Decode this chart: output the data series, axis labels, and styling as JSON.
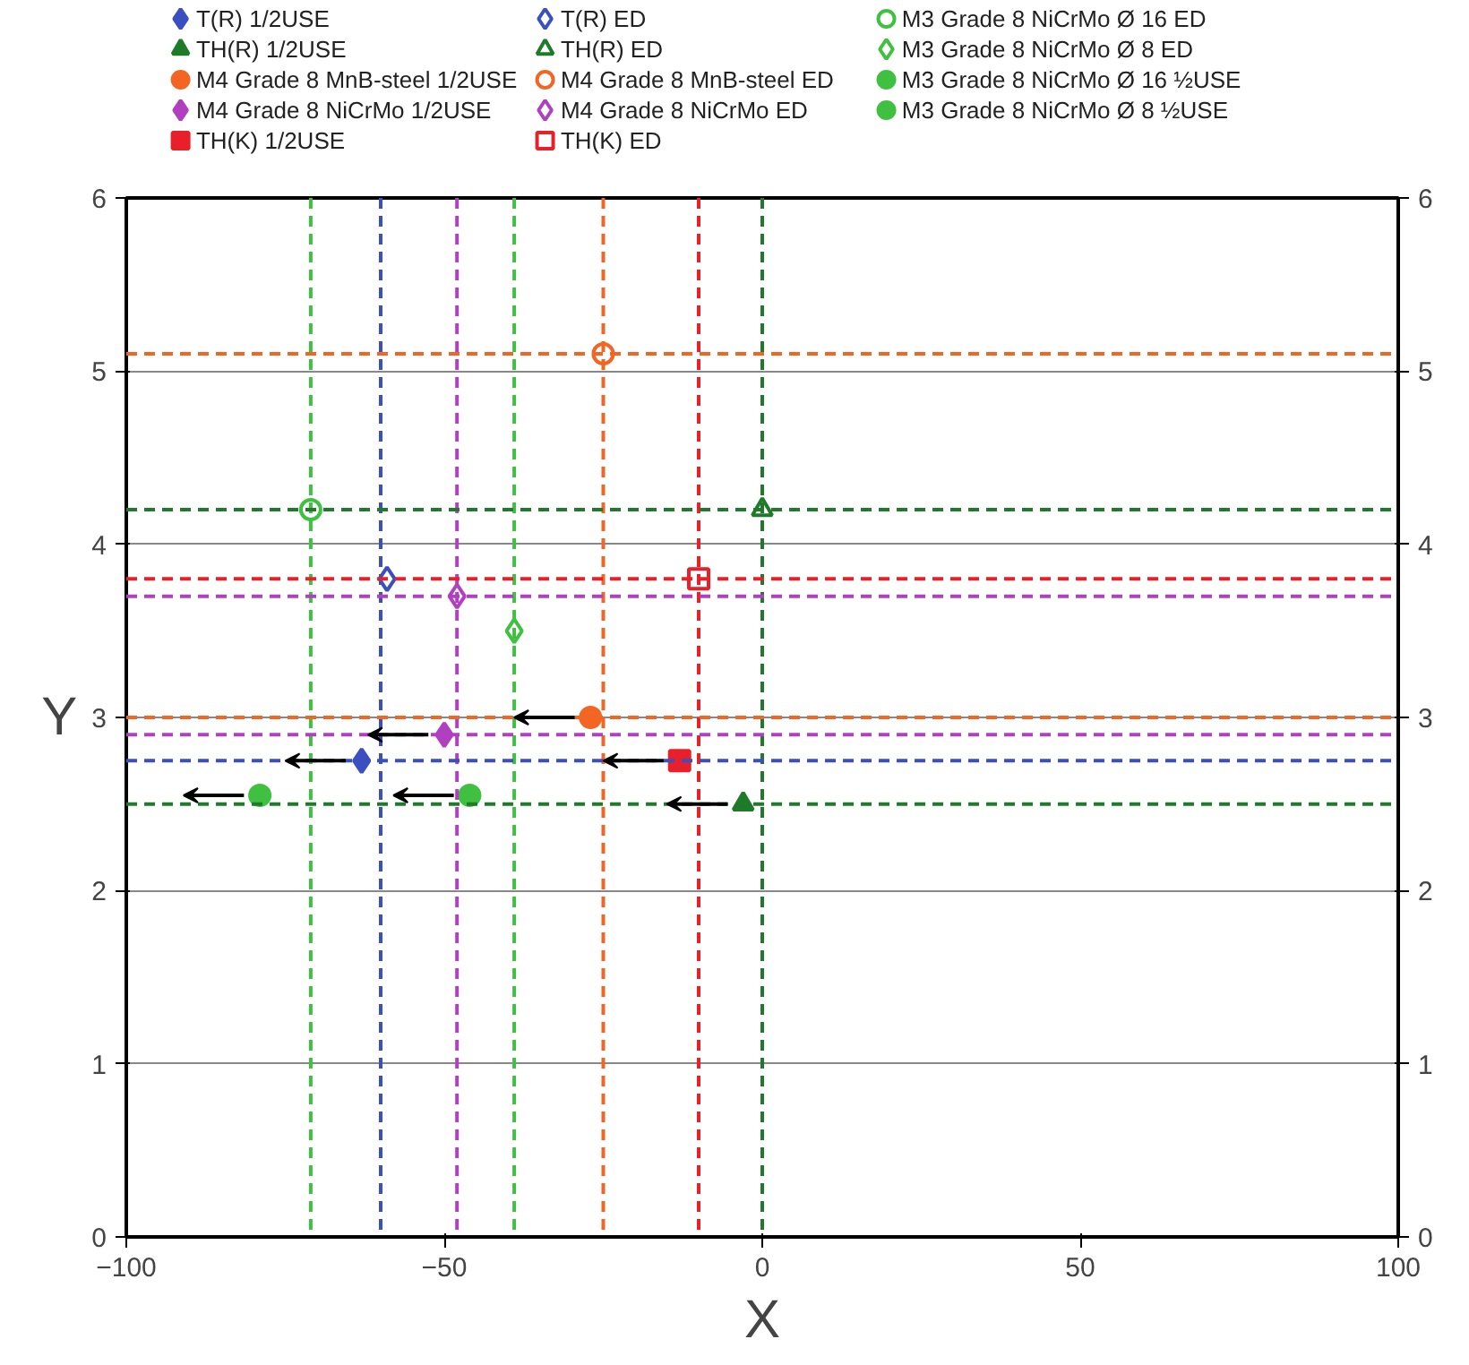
{
  "chart_data": {
    "type": "scatter",
    "xlabel": "X",
    "ylabel": "Y",
    "xlim": [
      -100,
      100
    ],
    "xticks": [
      -100,
      -50,
      0,
      50,
      100
    ],
    "ylim": [
      0,
      6
    ],
    "yticks": [
      0,
      1,
      2,
      3,
      4,
      5,
      6
    ],
    "y2lim": [
      0,
      6
    ],
    "y2ticks": [
      0,
      1,
      2,
      3,
      4,
      5,
      6
    ],
    "grid": "y",
    "legend": "top",
    "series": [
      {
        "name": "T(R) 1/2USE",
        "color": "#3a4fc0",
        "marker": "diamond",
        "x": [
          -63
        ],
        "values": [
          2.75
        ]
      },
      {
        "name": "TH(R) 1/2USE",
        "color": "#1f7a2a",
        "marker": "triangle",
        "x": [
          -3
        ],
        "values": [
          2.5
        ]
      },
      {
        "name": "M4 Grade 8 MnB-steel 1/2USE",
        "color": "#f26522",
        "marker": "circle",
        "x": [
          -27
        ],
        "values": [
          3.0
        ]
      },
      {
        "name": "M4 Grade 8 NiCrMo 1/2USE",
        "color": "#b040c0",
        "marker": "diamond",
        "x": [
          -50
        ],
        "values": [
          2.9
        ]
      },
      {
        "name": "TH(K) 1/2USE",
        "color": "#e8202a",
        "marker": "square",
        "x": [
          -13
        ],
        "values": [
          2.75
        ]
      },
      {
        "name": "T(R) ED",
        "color": "#3a4fc0",
        "marker": "diamond-open",
        "x": [
          -59
        ],
        "values": [
          3.8
        ]
      },
      {
        "name": "TH(R) ED",
        "color": "#1f7a2a",
        "marker": "triangle-open",
        "x": [
          0
        ],
        "values": [
          4.2
        ]
      },
      {
        "name": "M4 Grade 8 MnB-steel ED",
        "color": "#f26522",
        "marker": "circle-open",
        "x": [
          -25
        ],
        "values": [
          5.1
        ]
      },
      {
        "name": "M4 Grade 8 NiCrMo ED",
        "color": "#b040c0",
        "marker": "diamond-open",
        "x": [
          -48
        ],
        "values": [
          3.7
        ]
      },
      {
        "name": "TH(K) ED",
        "color": "#e8202a",
        "marker": "square-open",
        "x": [
          -10
        ],
        "values": [
          3.8
        ]
      },
      {
        "name": "M3 Grade 8 NiCrMo Ø 16 ED",
        "color": "#40c040",
        "marker": "circle-open",
        "x": [
          -71
        ],
        "values": [
          4.2
        ]
      },
      {
        "name": "M3 Grade 8 NiCrMo Ø 8 ED",
        "color": "#40c040",
        "marker": "diamond-open",
        "x": [
          -39
        ],
        "values": [
          3.5
        ]
      },
      {
        "name": "M3 Grade 8 NiCrMo Ø 16 ½USE",
        "color": "#40c040",
        "marker": "circle",
        "x": [
          -79
        ],
        "values": [
          2.55
        ]
      },
      {
        "name": "M3 Grade 8 NiCrMo Ø 8 ½USE",
        "color": "#40c040",
        "marker": "circle",
        "x": [
          -46
        ],
        "values": [
          2.55
        ]
      }
    ],
    "ref_lines": [
      {
        "axis": "x",
        "value": -71,
        "color": "#40c040",
        "line_style": "dashed"
      },
      {
        "axis": "x",
        "value": -60,
        "color": "#3a4fc0",
        "line_style": "dashed"
      },
      {
        "axis": "x",
        "value": -48,
        "color": "#b040c0",
        "line_style": "dashed"
      },
      {
        "axis": "x",
        "value": -39,
        "color": "#40c040",
        "line_style": "dashed"
      },
      {
        "axis": "x",
        "value": -25,
        "color": "#f26522",
        "line_style": "dashed"
      },
      {
        "axis": "x",
        "value": -10,
        "color": "#e8202a",
        "line_style": "dashed"
      },
      {
        "axis": "x",
        "value": 0,
        "color": "#1f7a2a",
        "line_style": "dashed"
      },
      {
        "axis": "y",
        "value": 5.1,
        "color": "#f26522",
        "line_style": "dashed"
      },
      {
        "axis": "y",
        "value": 4.2,
        "color": "#1f7a2a",
        "line_style": "dashed"
      },
      {
        "axis": "y",
        "value": 3.8,
        "color": "#e8202a",
        "line_style": "dashed"
      },
      {
        "axis": "y",
        "value": 3.7,
        "color": "#b040c0",
        "line_style": "dashed"
      },
      {
        "axis": "y",
        "value": 3.0,
        "color": "#f26522",
        "line_style": "dashed"
      },
      {
        "axis": "y",
        "value": 2.9,
        "color": "#b040c0",
        "line_style": "dashed"
      },
      {
        "axis": "y",
        "value": 2.75,
        "color": "#3a4fc0",
        "line_style": "dashed"
      },
      {
        "axis": "y",
        "value": 2.5,
        "color": "#1f7a2a",
        "line_style": "dashed"
      }
    ]
  }
}
